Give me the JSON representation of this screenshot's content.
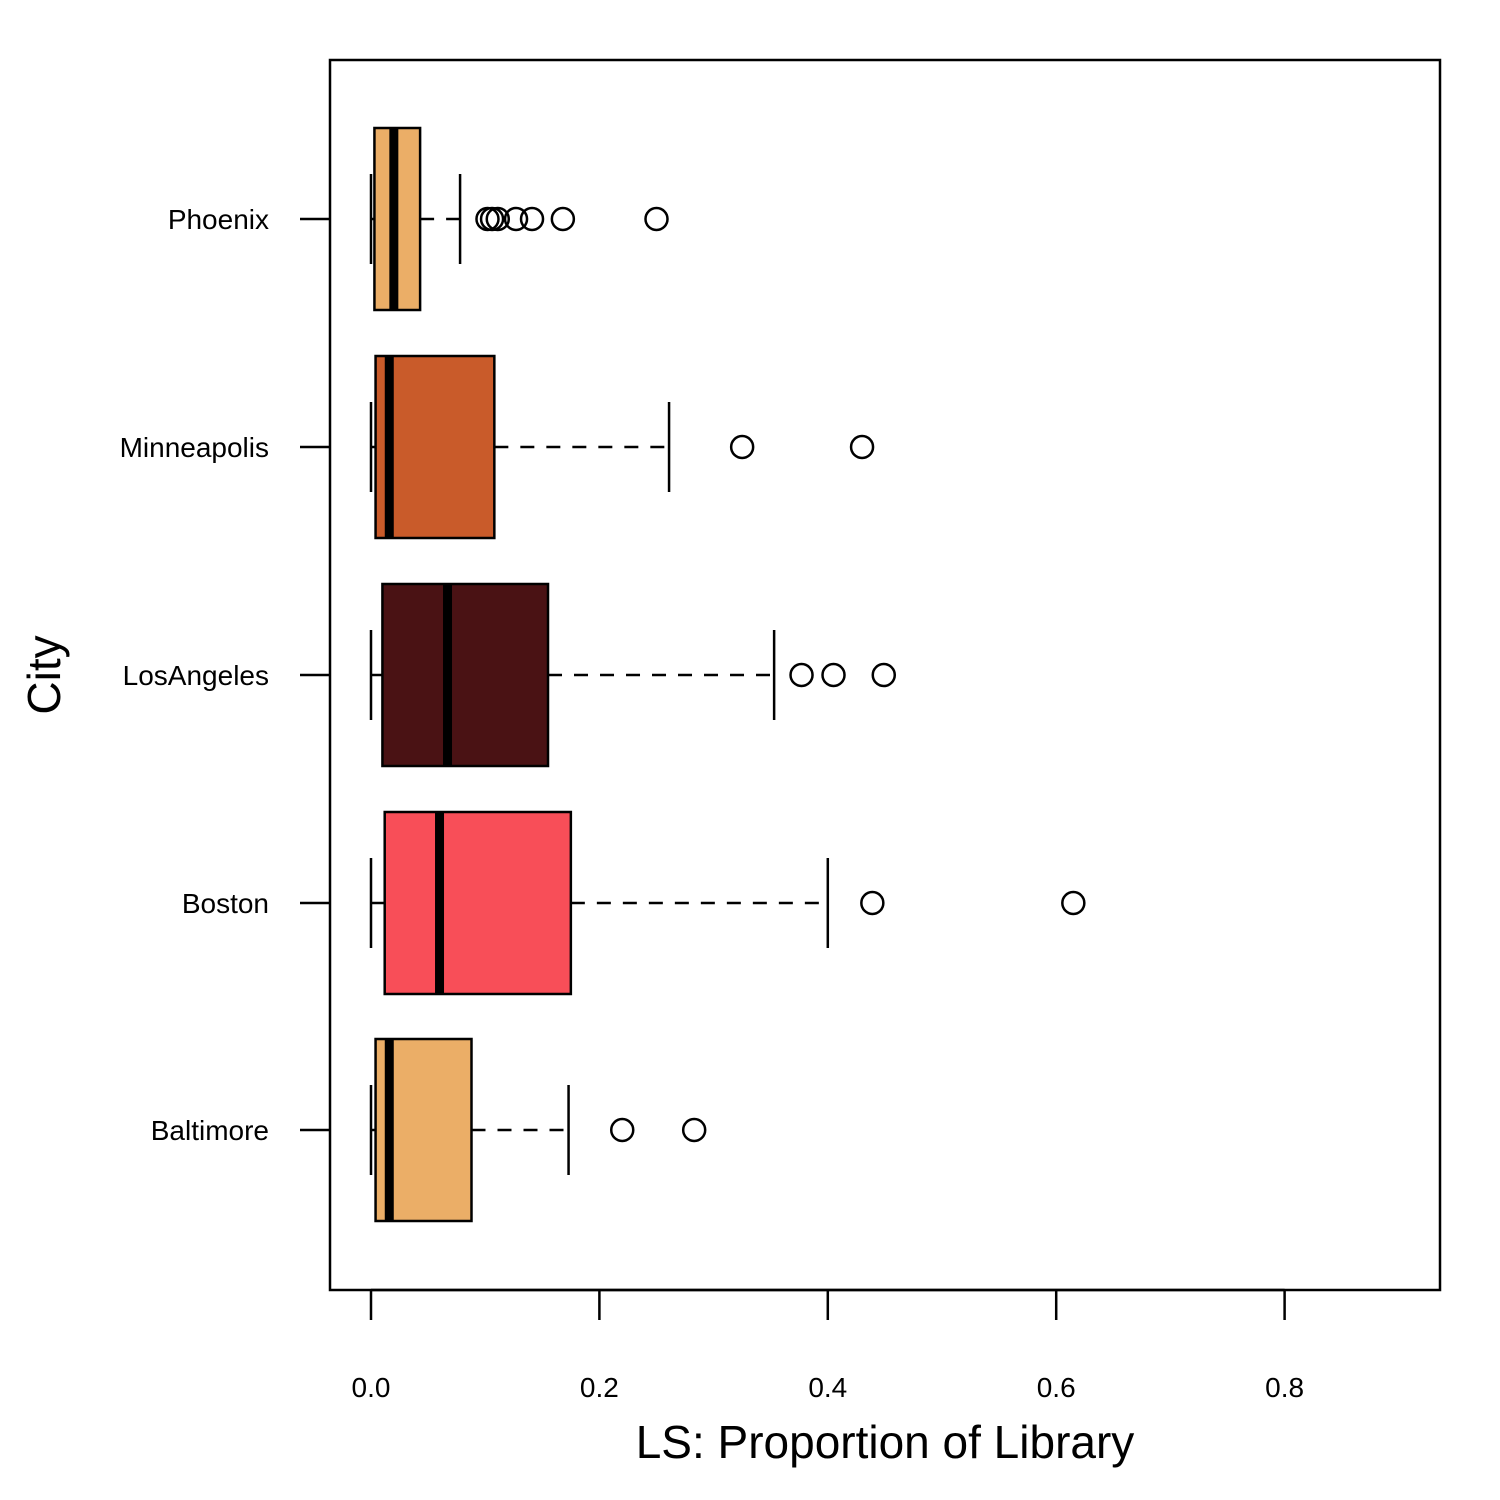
{
  "chart_data": {
    "type": "boxplot",
    "orientation": "horizontal",
    "xlabel": "LS: Proportion of Library",
    "ylabel": "City",
    "xlim": [
      0,
      0.93
    ],
    "x_ticks": [
      0.0,
      0.2,
      0.4,
      0.6,
      0.8
    ],
    "x_tick_labels": [
      "0.0",
      "0.2",
      "0.4",
      "0.6",
      "0.8"
    ],
    "grid": false,
    "categories": [
      "Phoenix",
      "Minneapolis",
      "LosAngeles",
      "Boston",
      "Baltimore"
    ],
    "series": [
      {
        "category": "Phoenix",
        "color": "#EBAE67",
        "whisker_low": 0.0,
        "q1": 0.003,
        "median": 0.02,
        "q3": 0.043,
        "whisker_high": 0.078,
        "outliers": [
          0.102,
          0.106,
          0.111,
          0.127,
          0.141,
          0.168,
          0.25
        ]
      },
      {
        "category": "Minneapolis",
        "color": "#C95B2A",
        "whisker_low": 0.0,
        "q1": 0.004,
        "median": 0.016,
        "q3": 0.108,
        "whisker_high": 0.261,
        "outliers": [
          0.325,
          0.43
        ]
      },
      {
        "category": "LosAngeles",
        "color": "#4A1214",
        "whisker_low": 0.0,
        "q1": 0.01,
        "median": 0.067,
        "q3": 0.155,
        "whisker_high": 0.353,
        "outliers": [
          0.377,
          0.405,
          0.449
        ]
      },
      {
        "category": "Boston",
        "color": "#F84E58",
        "whisker_low": 0.0,
        "q1": 0.012,
        "median": 0.06,
        "q3": 0.175,
        "whisker_high": 0.4,
        "outliers": [
          0.439,
          0.615
        ]
      },
      {
        "category": "Baltimore",
        "color": "#EBAE67",
        "whisker_low": 0.0,
        "q1": 0.004,
        "median": 0.016,
        "q3": 0.088,
        "whisker_high": 0.173,
        "outliers": [
          0.22,
          0.283
        ]
      }
    ]
  }
}
